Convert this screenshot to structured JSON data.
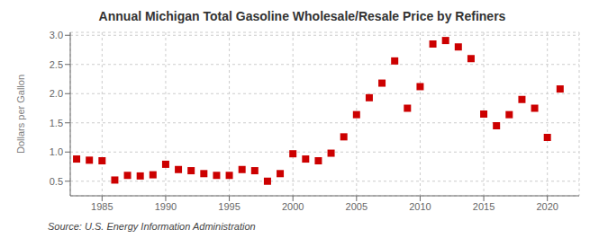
{
  "chart_data": {
    "type": "scatter",
    "title": "Annual Michigan Total Gasoline Wholesale/Resale Price by Refiners",
    "ylabel": "Dollars per Gallon",
    "annotations": [
      "Source: U.S. Energy Information Administration"
    ],
    "color": "#cc0000",
    "marker": "square",
    "grid": true,
    "xlim": [
      1982.5,
      2022.5
    ],
    "ylim": [
      0.25,
      3.05
    ],
    "xticks": [
      1985,
      1990,
      1995,
      2000,
      2005,
      2010,
      2015,
      2020
    ],
    "yticks": [
      0.5,
      {
        "value": 1.0,
        "label": "1.0"
      },
      1.5,
      {
        "value": 2.0,
        "label": "2.0"
      },
      2.5,
      {
        "value": 3.0,
        "label": "3.0"
      }
    ],
    "x": [
      1983,
      1984,
      1985,
      1986,
      1987,
      1988,
      1989,
      1990,
      1991,
      1992,
      1993,
      1994,
      1995,
      1996,
      1997,
      1998,
      1999,
      2000,
      2001,
      2002,
      2003,
      2004,
      2005,
      2006,
      2007,
      2008,
      2009,
      2010,
      2011,
      2012,
      2013,
      2014,
      2015,
      2016,
      2017,
      2018,
      2019,
      2020,
      2021
    ],
    "values": [
      0.88,
      0.86,
      0.85,
      0.52,
      0.6,
      0.59,
      0.61,
      0.79,
      0.7,
      0.68,
      0.63,
      0.6,
      0.6,
      0.7,
      0.68,
      0.5,
      0.63,
      0.97,
      0.88,
      0.85,
      0.98,
      1.26,
      1.64,
      1.93,
      2.18,
      2.56,
      1.75,
      2.12,
      2.85,
      2.91,
      2.8,
      2.6,
      1.65,
      1.45,
      1.64,
      1.9,
      1.75,
      1.25,
      2.08
    ]
  }
}
